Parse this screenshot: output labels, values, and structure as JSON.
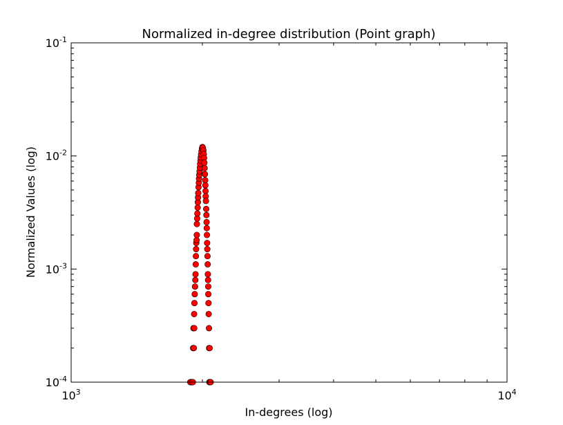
{
  "chart_data": {
    "type": "scatter",
    "title": "Normalized in-degree distribution (Point graph)",
    "xlabel": "In-degrees (log)",
    "ylabel": "Normalized Values (log)",
    "xscale": "log",
    "yscale": "log",
    "xlim": [
      1000,
      10000
    ],
    "ylim": [
      0.0001,
      0.1
    ],
    "grid": false,
    "legend": "none",
    "marker_color": "#ff0000",
    "marker_edge_color": "#000000",
    "x_ticks": [
      {
        "base": "10",
        "exp": "3",
        "value": 1000
      },
      {
        "base": "10",
        "exp": "4",
        "value": 10000
      }
    ],
    "y_ticks": [
      {
        "base": "10",
        "exp": "-4",
        "value": 0.0001
      },
      {
        "base": "10",
        "exp": "-3",
        "value": 0.001
      },
      {
        "base": "10",
        "exp": "-2",
        "value": 0.01
      },
      {
        "base": "10",
        "exp": "-1",
        "value": 0.1
      }
    ],
    "points": [
      {
        "x": 1876,
        "y": 0.0001
      },
      {
        "x": 1890,
        "y": 0.0001
      },
      {
        "x": 1902,
        "y": 0.0001
      },
      {
        "x": 1905,
        "y": 0.0002
      },
      {
        "x": 1912,
        "y": 0.0002
      },
      {
        "x": 1908,
        "y": 0.0003
      },
      {
        "x": 1916,
        "y": 0.0003
      },
      {
        "x": 1915,
        "y": 0.0004
      },
      {
        "x": 1918,
        "y": 0.0005
      },
      {
        "x": 1921,
        "y": 0.0006
      },
      {
        "x": 1924,
        "y": 0.0007
      },
      {
        "x": 1927,
        "y": 0.0008
      },
      {
        "x": 1929,
        "y": 0.0009
      },
      {
        "x": 1931,
        "y": 0.0011
      },
      {
        "x": 1933,
        "y": 0.0013
      },
      {
        "x": 1935,
        "y": 0.0015
      },
      {
        "x": 1937,
        "y": 0.0017
      },
      {
        "x": 1940,
        "y": 0.0018
      },
      {
        "x": 1942,
        "y": 0.002
      },
      {
        "x": 1943,
        "y": 0.0025
      },
      {
        "x": 1946,
        "y": 0.0028
      },
      {
        "x": 1948,
        "y": 0.0031
      },
      {
        "x": 1951,
        "y": 0.0035
      },
      {
        "x": 1953,
        "y": 0.0039
      },
      {
        "x": 1955,
        "y": 0.0043
      },
      {
        "x": 1957,
        "y": 0.0047
      },
      {
        "x": 1960,
        "y": 0.0053
      },
      {
        "x": 1963,
        "y": 0.0058
      },
      {
        "x": 1965,
        "y": 0.0063
      },
      {
        "x": 1968,
        "y": 0.0068
      },
      {
        "x": 1971,
        "y": 0.0073
      },
      {
        "x": 1974,
        "y": 0.0079
      },
      {
        "x": 1977,
        "y": 0.0085
      },
      {
        "x": 1980,
        "y": 0.0091
      },
      {
        "x": 1983,
        "y": 0.0097
      },
      {
        "x": 1987,
        "y": 0.0103
      },
      {
        "x": 1991,
        "y": 0.011
      },
      {
        "x": 1996,
        "y": 0.0116
      },
      {
        "x": 2001,
        "y": 0.012
      },
      {
        "x": 2006,
        "y": 0.0118
      },
      {
        "x": 2011,
        "y": 0.0112
      },
      {
        "x": 2015,
        "y": 0.0104
      },
      {
        "x": 2018,
        "y": 0.0096
      },
      {
        "x": 2021,
        "y": 0.0087
      },
      {
        "x": 2024,
        "y": 0.0078
      },
      {
        "x": 2027,
        "y": 0.0069
      },
      {
        "x": 2030,
        "y": 0.0061
      },
      {
        "x": 2032,
        "y": 0.0055
      },
      {
        "x": 2034,
        "y": 0.0049
      },
      {
        "x": 2036,
        "y": 0.0044
      },
      {
        "x": 2038,
        "y": 0.004
      },
      {
        "x": 2041,
        "y": 0.0034
      },
      {
        "x": 2043,
        "y": 0.003
      },
      {
        "x": 2045,
        "y": 0.0026
      },
      {
        "x": 2047,
        "y": 0.0023
      },
      {
        "x": 2049,
        "y": 0.002
      },
      {
        "x": 2051,
        "y": 0.0017
      },
      {
        "x": 2053,
        "y": 0.0015
      },
      {
        "x": 2055,
        "y": 0.0013
      },
      {
        "x": 2057,
        "y": 0.0011
      },
      {
        "x": 2059,
        "y": 0.0009
      },
      {
        "x": 2061,
        "y": 0.0008
      },
      {
        "x": 2063,
        "y": 0.0007
      },
      {
        "x": 2064,
        "y": 0.0006
      },
      {
        "x": 2066,
        "y": 0.0005
      },
      {
        "x": 2068,
        "y": 0.0004
      },
      {
        "x": 2071,
        "y": 0.0003
      },
      {
        "x": 2073,
        "y": 0.0002
      },
      {
        "x": 2078,
        "y": 0.0002
      },
      {
        "x": 2075,
        "y": 0.0001
      },
      {
        "x": 2082,
        "y": 0.0001
      },
      {
        "x": 2090,
        "y": 0.0001
      }
    ]
  }
}
